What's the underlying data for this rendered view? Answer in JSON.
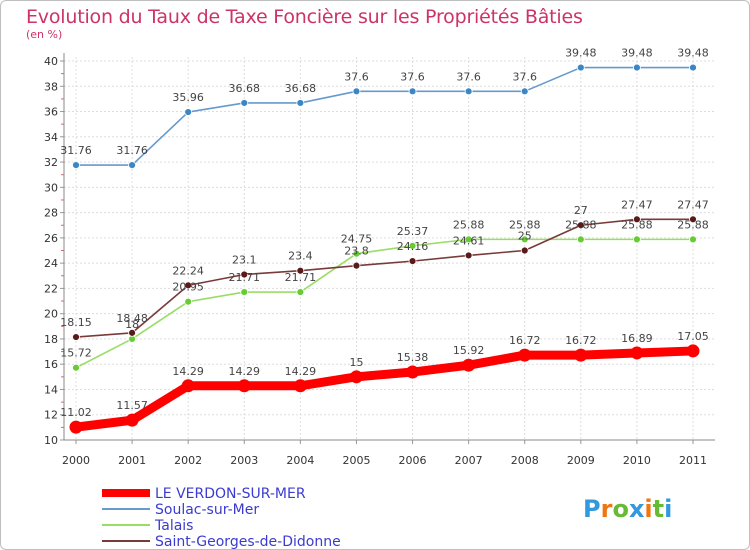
{
  "title": "Evolution du Taux de Taxe Foncière sur les Propriétés Bâties",
  "unit": "(en %)",
  "brand": "Proxiti",
  "chart_data": {
    "type": "line",
    "title": "Evolution du Taux de Taxe Foncière sur les Propriétés Bâties",
    "ylabel": "(en %)",
    "xlabel": "",
    "x": [
      "2000",
      "2001",
      "2002",
      "2003",
      "2004",
      "2005",
      "2006",
      "2007",
      "2008",
      "2009",
      "2010",
      "2011"
    ],
    "ylim": [
      10,
      40
    ],
    "yticks": [
      10,
      12,
      14,
      16,
      18,
      20,
      22,
      24,
      26,
      28,
      30,
      32,
      34,
      36,
      38,
      40
    ],
    "grid": true,
    "legend_position": "bottom-left",
    "series": [
      {
        "name": "LE VERDON-SUR-MER",
        "color": "#ff0000",
        "point_color": "#ff0000",
        "width": "thick",
        "values": [
          11.02,
          11.57,
          14.29,
          14.29,
          14.29,
          15,
          15.38,
          15.92,
          16.72,
          16.72,
          16.89,
          17.05
        ],
        "labels": [
          "11.02",
          "11.57",
          "14.29",
          "14.29",
          "14.29",
          "15",
          "15.38",
          "15.92",
          "16.72",
          "16.72",
          "16.89",
          "17.05"
        ]
      },
      {
        "name": "Soulac-sur-Mer",
        "color": "#6699cc",
        "point_color": "#3a87c8",
        "width": "thin",
        "values": [
          31.76,
          31.76,
          35.96,
          36.68,
          36.68,
          37.6,
          37.6,
          37.6,
          37.6,
          39.48,
          39.48,
          39.48
        ],
        "labels": [
          "31.76",
          "31.76",
          "35.96",
          "36.68",
          "36.68",
          "37.6",
          "37.6",
          "37.6",
          "37.6",
          "39.48",
          "39.48",
          "39.48"
        ]
      },
      {
        "name": "Talais",
        "color": "#99dd66",
        "point_color": "#66cc33",
        "width": "thin",
        "values": [
          15.72,
          18,
          20.95,
          21.71,
          21.71,
          24.75,
          25.37,
          25.88,
          25.88,
          25.88,
          25.88,
          25.88
        ],
        "labels": [
          "15.72",
          "18",
          "20.95",
          "21.71",
          "21.71",
          "24.75",
          "25.37",
          "25.88",
          "25.88",
          "25.88",
          "25.88",
          "25.88"
        ]
      },
      {
        "name": "Saint-Georges-de-Didonne",
        "color": "#7a3a3a",
        "point_color": "#5a1a1a",
        "width": "thin",
        "values": [
          18.15,
          18.48,
          22.24,
          23.1,
          23.4,
          23.8,
          24.16,
          24.61,
          25,
          27,
          27.47,
          27.47
        ],
        "labels": [
          "18.15",
          "18.48",
          "22.24",
          "23.1",
          "23.4",
          "23.8",
          "24.16",
          "24.61",
          "25",
          "27",
          "27.47",
          "27.47"
        ]
      }
    ]
  }
}
